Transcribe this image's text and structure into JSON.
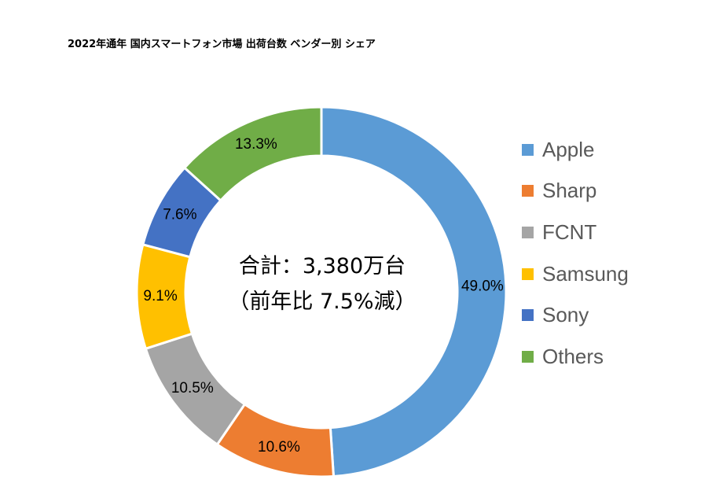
{
  "chart_data": {
    "type": "pie",
    "variant": "doughnut",
    "title": "2022年通年 国内スマートフォン市場 出荷台数 ベンダー別 シェア",
    "center_text": [
      "合計：3,380万台",
      "（前年比 7.5%減）"
    ],
    "unit": "%",
    "categories": [
      "Apple",
      "Sharp",
      "FCNT",
      "Samsung",
      "Sony",
      "Others"
    ],
    "values": [
      49.0,
      10.6,
      10.5,
      9.1,
      7.6,
      13.3
    ],
    "value_labels": [
      "49.0%",
      "10.6%",
      "10.5%",
      "9.1%",
      "7.6%",
      "13.3%"
    ],
    "colors": [
      "#5B9BD5",
      "#ED7D31",
      "#A5A5A5",
      "#FFC000",
      "#4472C4",
      "#70AD47"
    ],
    "legend_position": "right"
  }
}
